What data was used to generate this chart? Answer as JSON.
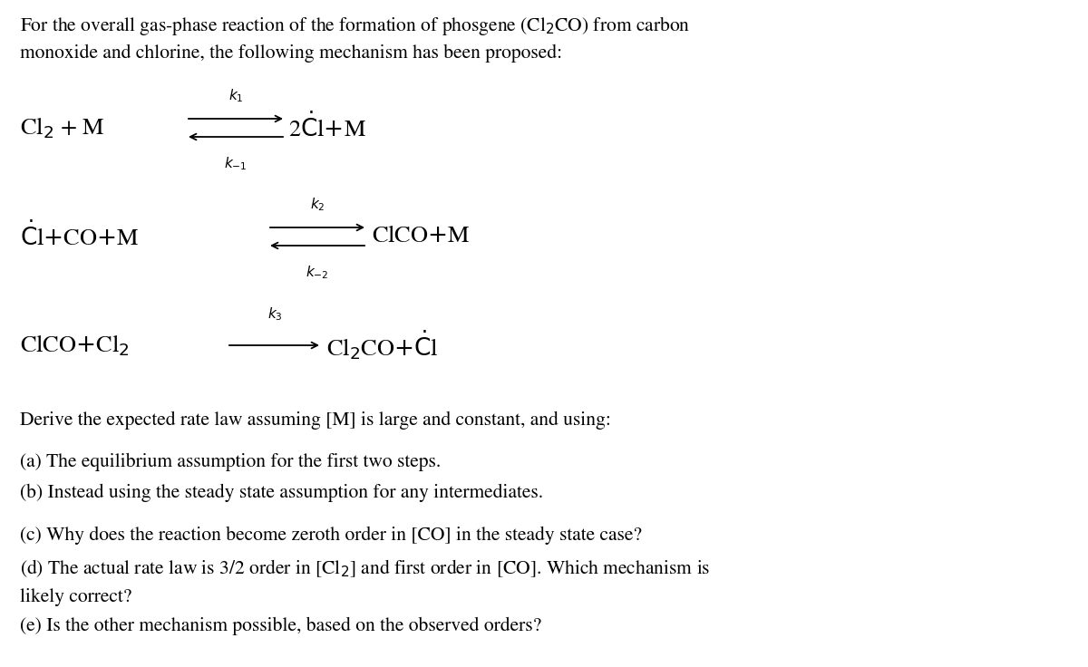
{
  "background_color": "#ffffff",
  "figsize": [
    12.0,
    7.36
  ],
  "dpi": 100,
  "font_family": "STIXGeneral",
  "text_color": "#000000",
  "font_size_main": 15.5,
  "font_size_rxn": 19,
  "font_size_rate": 11,
  "intro_line1": "For the overall gas-phase reaction of the formation of phosgene (Cl$_2$CO) from carbon",
  "intro_line2": "monoxide and chlorine, the following mechanism has been proposed:",
  "derive_text": "Derive the expected rate law assuming [M] is large and constant, and using:",
  "part_a": "(a) The equilibrium assumption for the first two steps.",
  "part_b": "(b) Instead using the steady state assumption for any intermediates.",
  "part_c": "(c) Why does the reaction become zeroth order in [CO] in the steady state case?",
  "part_d": "(d) The actual rate law is 3/2 order in [Cl$_2$] and first order in [CO]. Which mechanism is",
  "part_d2": "likely correct?",
  "part_e": "(e) Is the other mechanism possible, based on the observed orders?"
}
